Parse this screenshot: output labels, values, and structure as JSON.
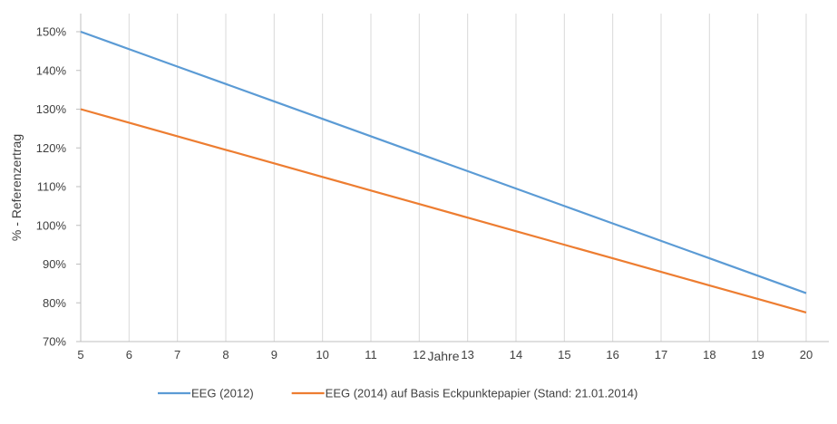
{
  "chart_data": {
    "type": "line",
    "title": "",
    "xlabel": "Jahre",
    "ylabel": "% - Referenzertrag",
    "x": [
      5,
      6,
      7,
      8,
      9,
      10,
      11,
      12,
      13,
      14,
      15,
      16,
      17,
      18,
      19,
      20
    ],
    "xlim": [
      5,
      20
    ],
    "ylim": [
      70,
      150
    ],
    "y_ticks": [
      "70%",
      "80%",
      "90%",
      "100%",
      "110%",
      "120%",
      "130%",
      "140%",
      "150%"
    ],
    "x_ticks": [
      "5",
      "6",
      "7",
      "8",
      "9",
      "10",
      "11",
      "12",
      "13",
      "14",
      "15",
      "16",
      "17",
      "18",
      "19",
      "20"
    ],
    "grid": "vertical",
    "legend_position": "bottom",
    "series": [
      {
        "name": "EEG (2012)",
        "color": "#5b9bd5",
        "values": [
          150,
          145.5,
          141,
          136.5,
          132,
          127.5,
          123,
          118.5,
          114,
          109.5,
          105,
          100.5,
          96,
          91.5,
          87,
          82.5
        ]
      },
      {
        "name": "EEG (2014) auf Basis Eckpunktepapier (Stand: 21.01.2014)",
        "color": "#ed7d31",
        "values": [
          130,
          126.5,
          123,
          119.5,
          116,
          112.5,
          109,
          105.5,
          102,
          98.5,
          95,
          91.5,
          88,
          84.5,
          81,
          77.5
        ]
      }
    ]
  }
}
